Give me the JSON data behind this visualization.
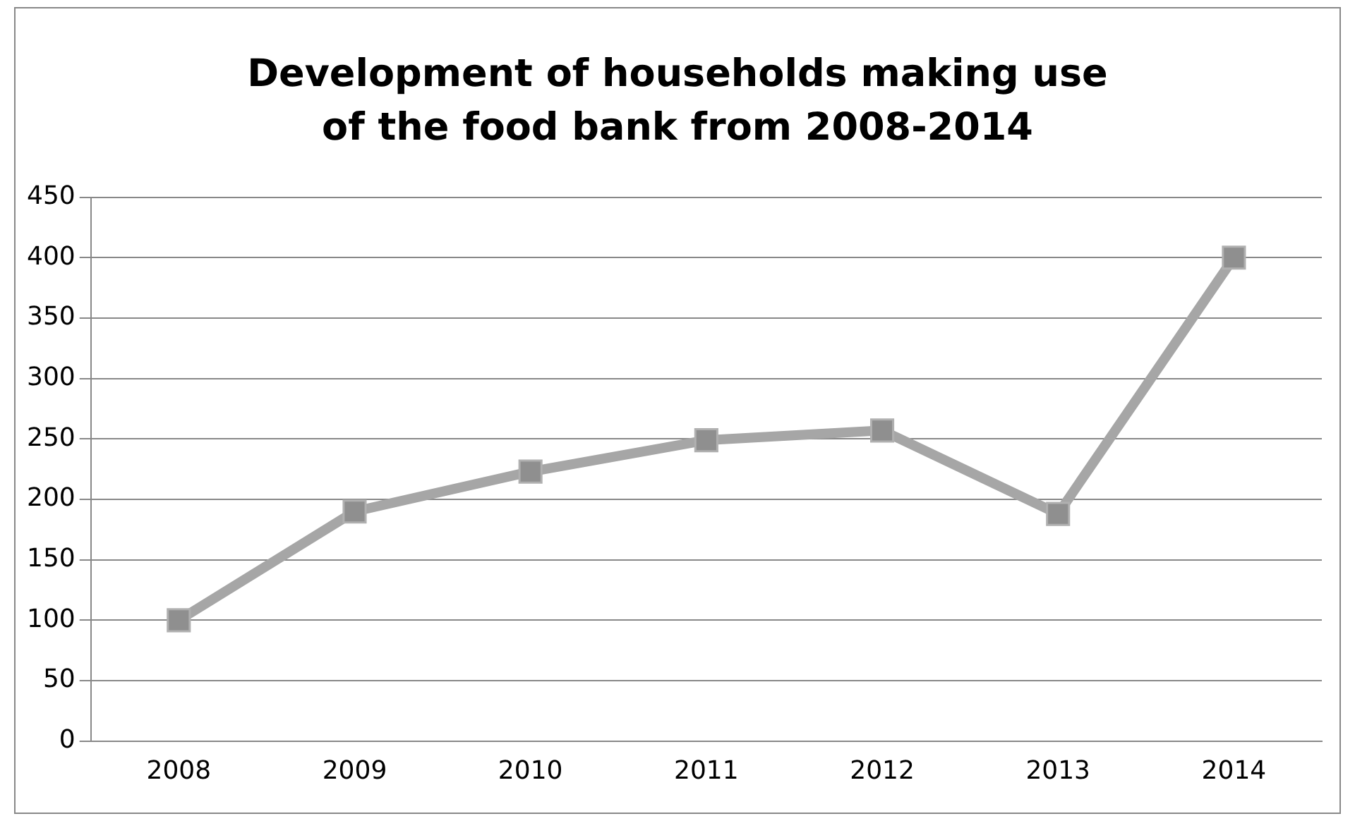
{
  "chart_data": {
    "type": "line",
    "title": "Development of households making use of the food bank from 2008-2014",
    "categories": [
      "2008",
      "2009",
      "2010",
      "2011",
      "2012",
      "2013",
      "2014"
    ],
    "series": [
      {
        "color": "#a6a6a6",
        "values": [
          100,
          190,
          223,
          249,
          257,
          188,
          400
        ]
      }
    ],
    "ylim": [
      0,
      450
    ],
    "yticks": [
      0,
      50,
      100,
      150,
      200,
      250,
      300,
      350,
      400,
      450
    ],
    "grid": "y",
    "legend": false,
    "marker": "square",
    "line_style": "solid"
  }
}
